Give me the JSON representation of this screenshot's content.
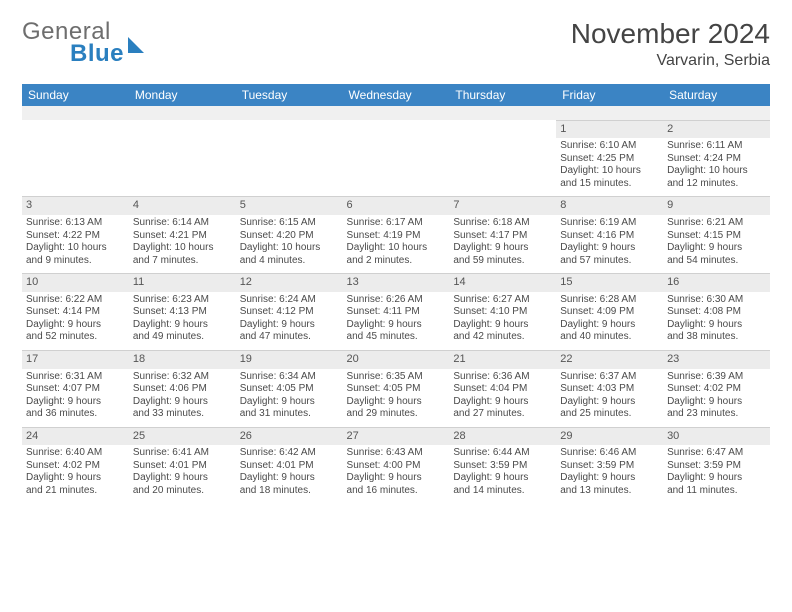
{
  "brand": {
    "word1": "General",
    "word2": "Blue"
  },
  "header": {
    "month": "November 2024",
    "location": "Varvarin, Serbia"
  },
  "colors": {
    "header_bg": "#3b84c4",
    "header_fg": "#ffffff",
    "daynum_bg": "#ececec",
    "text": "#4a4a4a",
    "border": "#d0d0d0",
    "brand_grey": "#6e6e6e",
    "brand_blue": "#2a7fbf"
  },
  "weekdays": [
    "Sunday",
    "Monday",
    "Tuesday",
    "Wednesday",
    "Thursday",
    "Friday",
    "Saturday"
  ],
  "weeks": [
    [
      null,
      null,
      null,
      null,
      null,
      {
        "n": "1",
        "sr": "Sunrise: 6:10 AM",
        "ss": "Sunset: 4:25 PM",
        "d1": "Daylight: 10 hours",
        "d2": "and 15 minutes."
      },
      {
        "n": "2",
        "sr": "Sunrise: 6:11 AM",
        "ss": "Sunset: 4:24 PM",
        "d1": "Daylight: 10 hours",
        "d2": "and 12 minutes."
      }
    ],
    [
      {
        "n": "3",
        "sr": "Sunrise: 6:13 AM",
        "ss": "Sunset: 4:22 PM",
        "d1": "Daylight: 10 hours",
        "d2": "and 9 minutes."
      },
      {
        "n": "4",
        "sr": "Sunrise: 6:14 AM",
        "ss": "Sunset: 4:21 PM",
        "d1": "Daylight: 10 hours",
        "d2": "and 7 minutes."
      },
      {
        "n": "5",
        "sr": "Sunrise: 6:15 AM",
        "ss": "Sunset: 4:20 PM",
        "d1": "Daylight: 10 hours",
        "d2": "and 4 minutes."
      },
      {
        "n": "6",
        "sr": "Sunrise: 6:17 AM",
        "ss": "Sunset: 4:19 PM",
        "d1": "Daylight: 10 hours",
        "d2": "and 2 minutes."
      },
      {
        "n": "7",
        "sr": "Sunrise: 6:18 AM",
        "ss": "Sunset: 4:17 PM",
        "d1": "Daylight: 9 hours",
        "d2": "and 59 minutes."
      },
      {
        "n": "8",
        "sr": "Sunrise: 6:19 AM",
        "ss": "Sunset: 4:16 PM",
        "d1": "Daylight: 9 hours",
        "d2": "and 57 minutes."
      },
      {
        "n": "9",
        "sr": "Sunrise: 6:21 AM",
        "ss": "Sunset: 4:15 PM",
        "d1": "Daylight: 9 hours",
        "d2": "and 54 minutes."
      }
    ],
    [
      {
        "n": "10",
        "sr": "Sunrise: 6:22 AM",
        "ss": "Sunset: 4:14 PM",
        "d1": "Daylight: 9 hours",
        "d2": "and 52 minutes."
      },
      {
        "n": "11",
        "sr": "Sunrise: 6:23 AM",
        "ss": "Sunset: 4:13 PM",
        "d1": "Daylight: 9 hours",
        "d2": "and 49 minutes."
      },
      {
        "n": "12",
        "sr": "Sunrise: 6:24 AM",
        "ss": "Sunset: 4:12 PM",
        "d1": "Daylight: 9 hours",
        "d2": "and 47 minutes."
      },
      {
        "n": "13",
        "sr": "Sunrise: 6:26 AM",
        "ss": "Sunset: 4:11 PM",
        "d1": "Daylight: 9 hours",
        "d2": "and 45 minutes."
      },
      {
        "n": "14",
        "sr": "Sunrise: 6:27 AM",
        "ss": "Sunset: 4:10 PM",
        "d1": "Daylight: 9 hours",
        "d2": "and 42 minutes."
      },
      {
        "n": "15",
        "sr": "Sunrise: 6:28 AM",
        "ss": "Sunset: 4:09 PM",
        "d1": "Daylight: 9 hours",
        "d2": "and 40 minutes."
      },
      {
        "n": "16",
        "sr": "Sunrise: 6:30 AM",
        "ss": "Sunset: 4:08 PM",
        "d1": "Daylight: 9 hours",
        "d2": "and 38 minutes."
      }
    ],
    [
      {
        "n": "17",
        "sr": "Sunrise: 6:31 AM",
        "ss": "Sunset: 4:07 PM",
        "d1": "Daylight: 9 hours",
        "d2": "and 36 minutes."
      },
      {
        "n": "18",
        "sr": "Sunrise: 6:32 AM",
        "ss": "Sunset: 4:06 PM",
        "d1": "Daylight: 9 hours",
        "d2": "and 33 minutes."
      },
      {
        "n": "19",
        "sr": "Sunrise: 6:34 AM",
        "ss": "Sunset: 4:05 PM",
        "d1": "Daylight: 9 hours",
        "d2": "and 31 minutes."
      },
      {
        "n": "20",
        "sr": "Sunrise: 6:35 AM",
        "ss": "Sunset: 4:05 PM",
        "d1": "Daylight: 9 hours",
        "d2": "and 29 minutes."
      },
      {
        "n": "21",
        "sr": "Sunrise: 6:36 AM",
        "ss": "Sunset: 4:04 PM",
        "d1": "Daylight: 9 hours",
        "d2": "and 27 minutes."
      },
      {
        "n": "22",
        "sr": "Sunrise: 6:37 AM",
        "ss": "Sunset: 4:03 PM",
        "d1": "Daylight: 9 hours",
        "d2": "and 25 minutes."
      },
      {
        "n": "23",
        "sr": "Sunrise: 6:39 AM",
        "ss": "Sunset: 4:02 PM",
        "d1": "Daylight: 9 hours",
        "d2": "and 23 minutes."
      }
    ],
    [
      {
        "n": "24",
        "sr": "Sunrise: 6:40 AM",
        "ss": "Sunset: 4:02 PM",
        "d1": "Daylight: 9 hours",
        "d2": "and 21 minutes."
      },
      {
        "n": "25",
        "sr": "Sunrise: 6:41 AM",
        "ss": "Sunset: 4:01 PM",
        "d1": "Daylight: 9 hours",
        "d2": "and 20 minutes."
      },
      {
        "n": "26",
        "sr": "Sunrise: 6:42 AM",
        "ss": "Sunset: 4:01 PM",
        "d1": "Daylight: 9 hours",
        "d2": "and 18 minutes."
      },
      {
        "n": "27",
        "sr": "Sunrise: 6:43 AM",
        "ss": "Sunset: 4:00 PM",
        "d1": "Daylight: 9 hours",
        "d2": "and 16 minutes."
      },
      {
        "n": "28",
        "sr": "Sunrise: 6:44 AM",
        "ss": "Sunset: 3:59 PM",
        "d1": "Daylight: 9 hours",
        "d2": "and 14 minutes."
      },
      {
        "n": "29",
        "sr": "Sunrise: 6:46 AM",
        "ss": "Sunset: 3:59 PM",
        "d1": "Daylight: 9 hours",
        "d2": "and 13 minutes."
      },
      {
        "n": "30",
        "sr": "Sunrise: 6:47 AM",
        "ss": "Sunset: 3:59 PM",
        "d1": "Daylight: 9 hours",
        "d2": "and 11 minutes."
      }
    ]
  ]
}
